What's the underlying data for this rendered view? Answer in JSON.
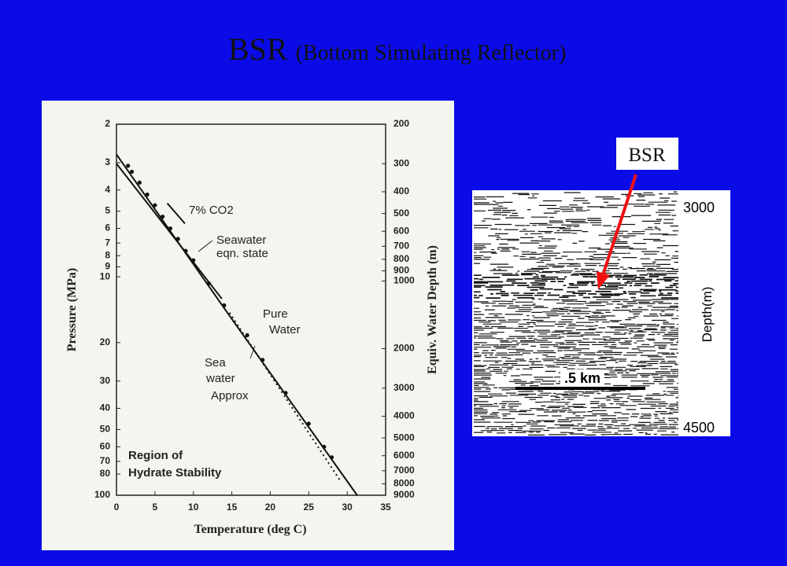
{
  "title": {
    "main": "BSR",
    "sub": "(Bottom Simulating Reflector)"
  },
  "chart_data": {
    "type": "line",
    "xlabel": "Temperature (deg C)",
    "ylabel": "Pressure (MPa)",
    "y2label": "Equiv. Water Depth (m)",
    "xlim": [
      0,
      35
    ],
    "xticks": [
      0,
      5,
      10,
      15,
      20,
      25,
      30,
      35
    ],
    "ylim": [
      2,
      100
    ],
    "yscale": "log",
    "yticks": [
      2,
      3,
      4,
      5,
      6,
      7,
      8,
      9,
      10,
      20,
      30,
      40,
      50,
      60,
      70,
      80,
      100
    ],
    "y2lim": [
      200,
      9000
    ],
    "y2scale": "log",
    "y2ticks": [
      200,
      300,
      400,
      500,
      600,
      700,
      800,
      900,
      1000,
      2000,
      3000,
      4000,
      5000,
      6000,
      7000,
      8000,
      9000
    ],
    "series": [
      {
        "style": "solid",
        "color": "#111111",
        "x": [
          0,
          15,
          31.3
        ],
        "values": [
          2.75,
          15.6,
          100
        ]
      },
      {
        "style": "solid",
        "color": "#111111",
        "x": [
          0,
          13.7
        ],
        "values": [
          3.03,
          12.6
        ]
      },
      {
        "style": "dotted",
        "color": "#111111",
        "x": [
          14.7,
          29.0
        ],
        "values": [
          14.6,
          84.7
        ]
      },
      {
        "style": "solid",
        "color": "#111111",
        "x": [
          6.6,
          8.9
        ],
        "values": [
          4.6,
          5.7
        ]
      },
      {
        "style": "dots",
        "color": "#111111",
        "x": [
          1.5,
          2,
          3,
          4,
          5,
          6,
          7,
          8,
          9,
          10,
          12,
          14,
          17,
          19,
          22,
          25,
          27,
          28
        ],
        "values": [
          3.1,
          3.3,
          3.7,
          4.2,
          4.7,
          5.3,
          6.0,
          6.7,
          7.6,
          8.4,
          10.7,
          13.5,
          18.5,
          24,
          34,
          47,
          60,
          67
        ]
      }
    ],
    "annotations": [
      [
        "7% CO2"
      ],
      [
        "Seawater",
        "eqn. state"
      ],
      [
        "Pure",
        "Water"
      ],
      [
        "Sea",
        "water",
        "Approx"
      ],
      [
        "Region of",
        "Hydrate Stability"
      ]
    ]
  },
  "seismic": {
    "depth_top": "3000",
    "depth_bottom": "4500",
    "depth_label": "Depth(m)",
    "scale_label": ".5 km",
    "callout": "BSR"
  }
}
